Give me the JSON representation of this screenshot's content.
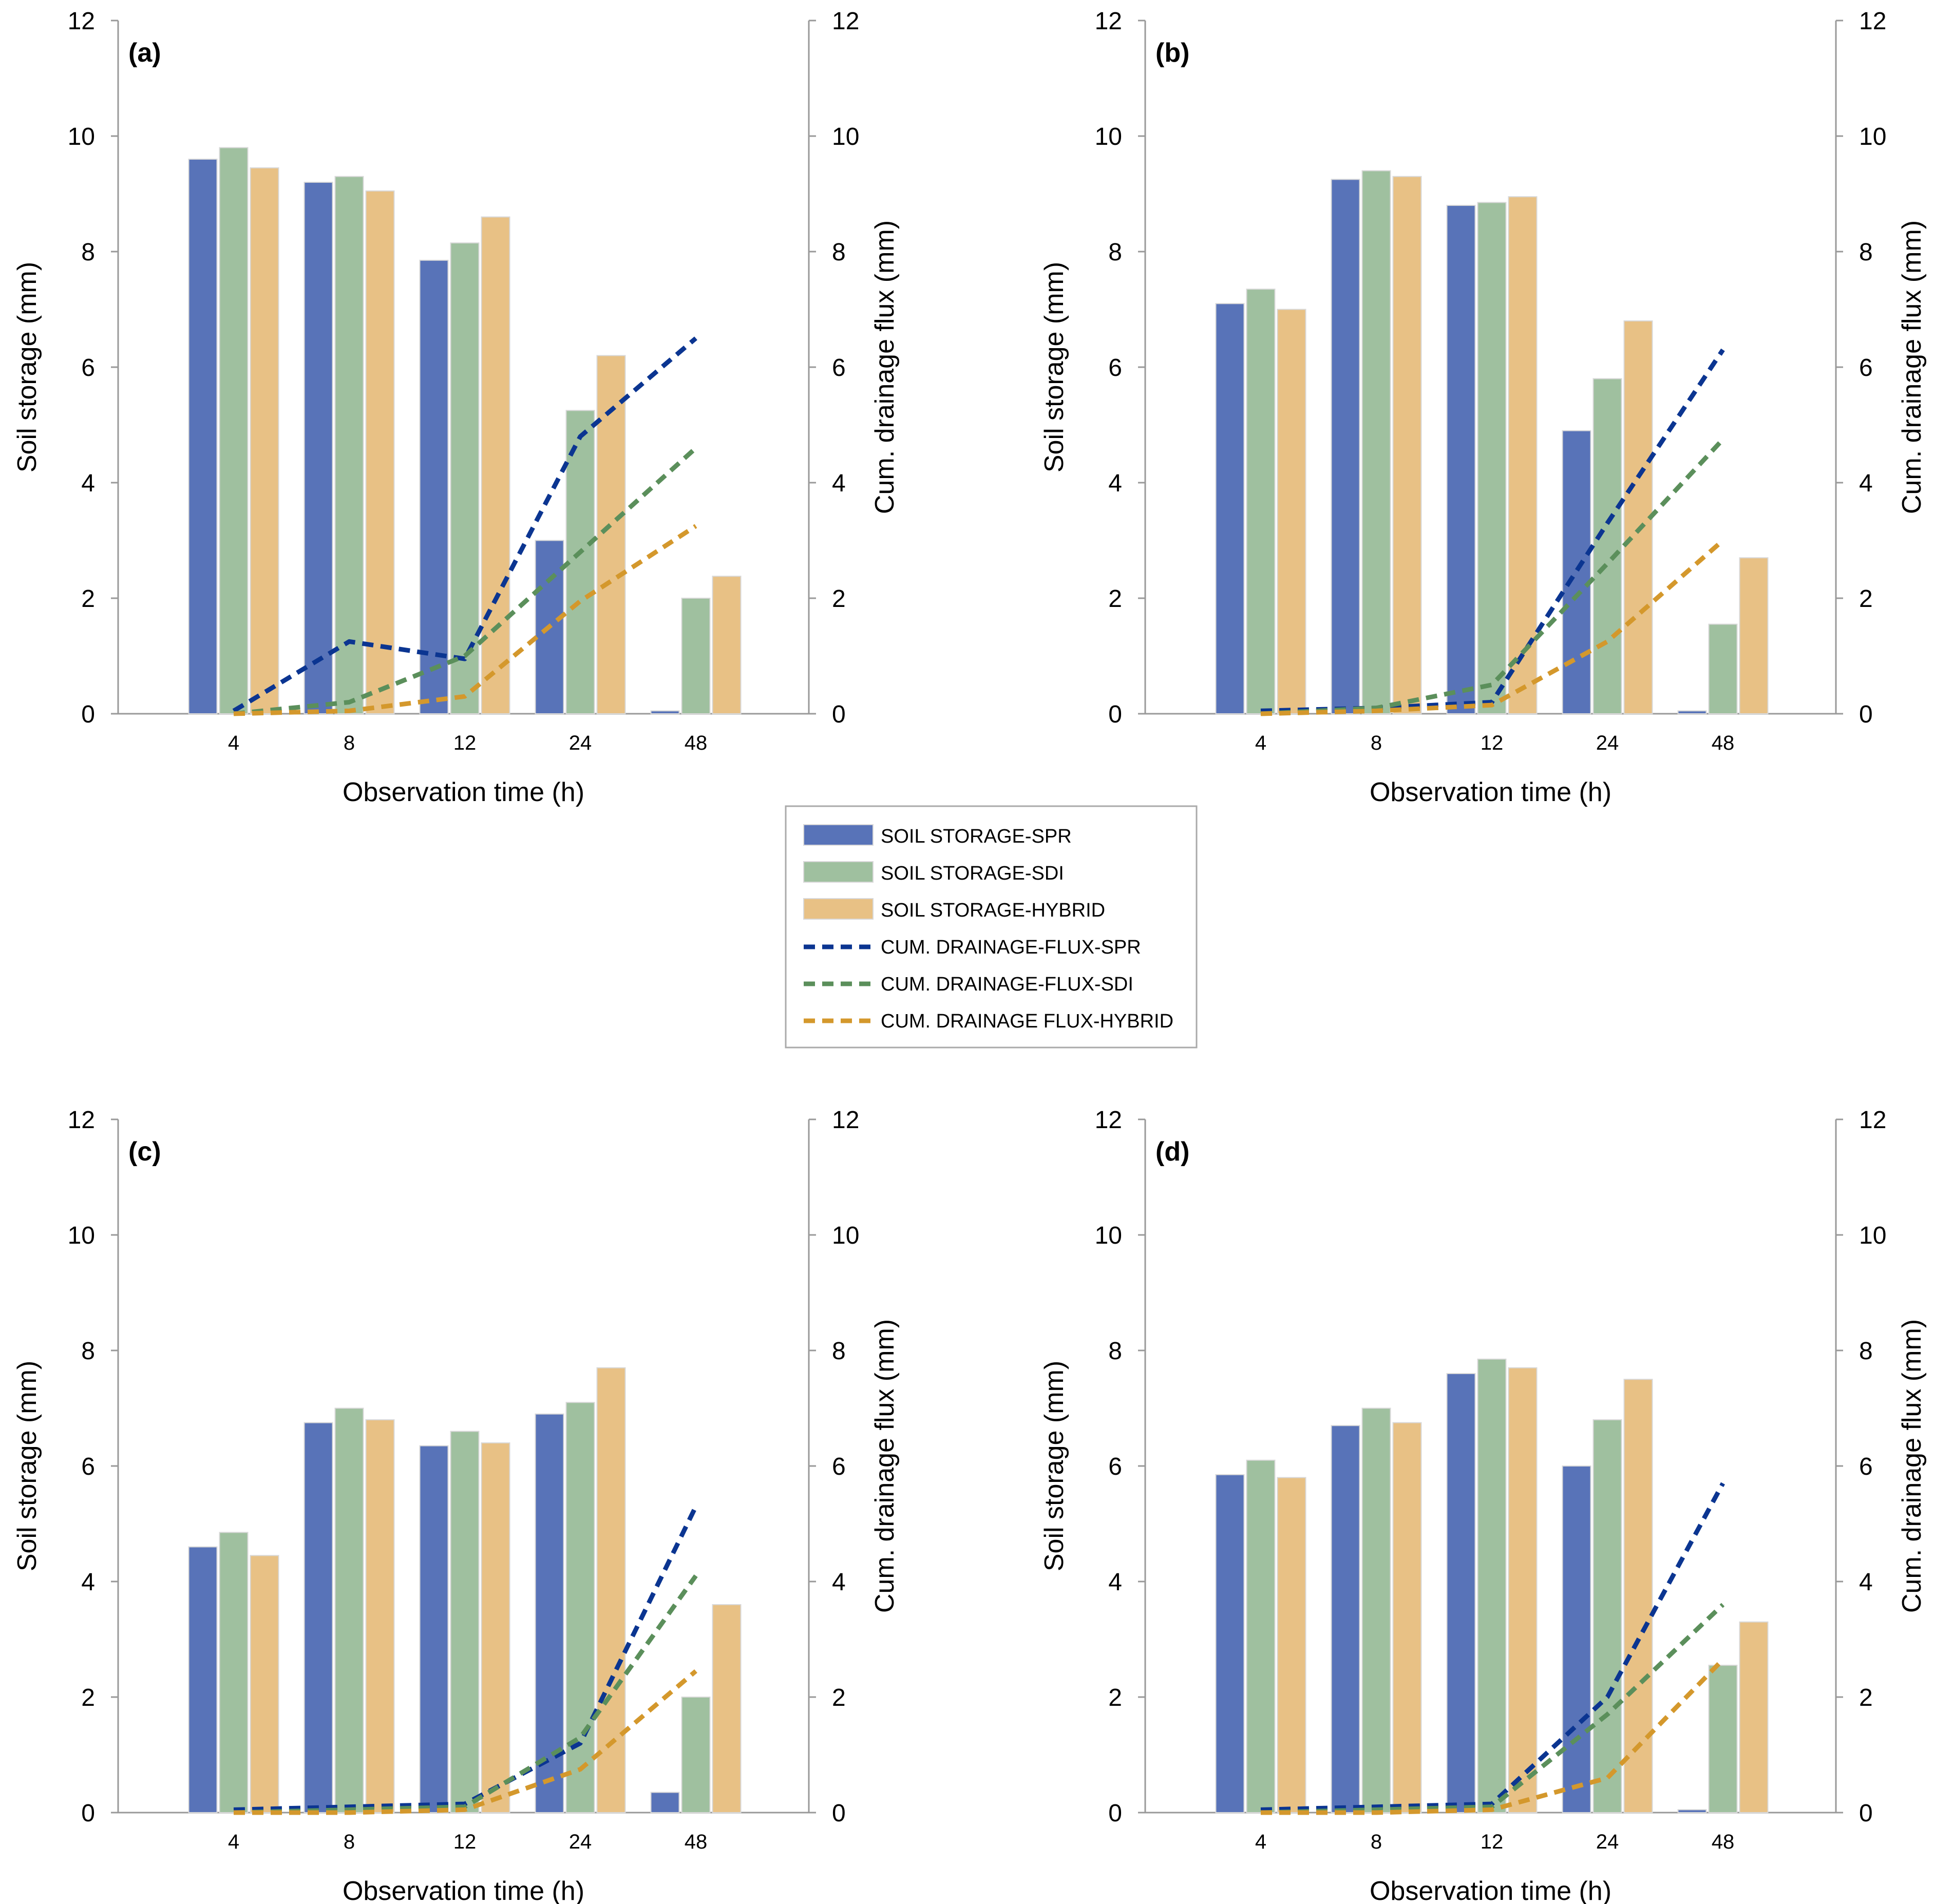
{
  "chart_data": [
    {
      "type": "bar",
      "panel_label": "(a)",
      "categories": [
        "4",
        "8",
        "12",
        "24",
        "48"
      ],
      "xlabel": "Observation time (h)",
      "ylabel": "Soil storage (mm)",
      "y2label": "Cum. drainage flux (mm)",
      "ylim": [
        0,
        12
      ],
      "y2lim": [
        0,
        12
      ],
      "yticks": [
        "0",
        "2",
        "4",
        "6",
        "8",
        "10",
        "12"
      ],
      "series": [
        {
          "name": "SOIL STORAGE-SPR",
          "kind": "bar",
          "values": [
            9.6,
            9.2,
            7.85,
            3.0,
            0.05
          ]
        },
        {
          "name": "SOIL STORAGE-SDI",
          "kind": "bar",
          "values": [
            9.8,
            9.3,
            8.15,
            5.25,
            2.0
          ]
        },
        {
          "name": "SOIL STORAGE-HYBRID",
          "kind": "bar",
          "values": [
            9.45,
            9.05,
            8.6,
            6.2,
            2.38
          ]
        },
        {
          "name": "CUM. DRAINAGE-FLUX-SPR",
          "kind": "line",
          "axis": "right",
          "values": [
            0.05,
            1.25,
            0.95,
            4.8,
            6.5
          ]
        },
        {
          "name": "CUM. DRAINAGE-FLUX-SDI",
          "kind": "line",
          "axis": "right",
          "values": [
            0.0,
            0.2,
            1.0,
            2.8,
            4.6
          ]
        },
        {
          "name": "CUM. DRAINAGE FLUX-HYBRID",
          "kind": "line",
          "axis": "right",
          "values": [
            0.0,
            0.05,
            0.3,
            1.95,
            3.25
          ]
        }
      ]
    },
    {
      "type": "bar",
      "panel_label": "(b)",
      "categories": [
        "4",
        "8",
        "12",
        "24",
        "48"
      ],
      "xlabel": "Observation time (h)",
      "ylabel": "Soil storage (mm)",
      "y2label": "Cum. drainage flux (mm)",
      "ylim": [
        0,
        12
      ],
      "y2lim": [
        0,
        12
      ],
      "yticks": [
        "0",
        "2",
        "4",
        "6",
        "8",
        "10",
        "12"
      ],
      "series": [
        {
          "name": "SOIL STORAGE-SPR",
          "kind": "bar",
          "values": [
            7.1,
            9.25,
            8.8,
            4.9,
            0.05
          ]
        },
        {
          "name": "SOIL STORAGE-SDI",
          "kind": "bar",
          "values": [
            7.35,
            9.4,
            8.85,
            5.8,
            1.55
          ]
        },
        {
          "name": "SOIL STORAGE-HYBRID",
          "kind": "bar",
          "values": [
            7.0,
            9.3,
            8.95,
            6.8,
            2.7
          ]
        },
        {
          "name": "CUM. DRAINAGE-FLUX-SPR",
          "kind": "line",
          "axis": "right",
          "values": [
            0.05,
            0.1,
            0.2,
            3.3,
            6.3
          ]
        },
        {
          "name": "CUM. DRAINAGE-FLUX-SDI",
          "kind": "line",
          "axis": "right",
          "values": [
            0.0,
            0.1,
            0.5,
            2.6,
            4.75
          ]
        },
        {
          "name": "CUM. DRAINAGE FLUX-HYBRID",
          "kind": "line",
          "axis": "right",
          "values": [
            0.0,
            0.05,
            0.15,
            1.25,
            3.0
          ]
        }
      ]
    },
    {
      "type": "bar",
      "panel_label": "(c)",
      "categories": [
        "4",
        "8",
        "12",
        "24",
        "48"
      ],
      "xlabel": "Observation time (h)",
      "ylabel": "Soil storage (mm)",
      "y2label": "Cum. drainage flux (mm)",
      "ylim": [
        0,
        12
      ],
      "y2lim": [
        0,
        12
      ],
      "yticks": [
        "0",
        "2",
        "4",
        "6",
        "8",
        "10",
        "12"
      ],
      "series": [
        {
          "name": "SOIL STORAGE-SPR",
          "kind": "bar",
          "values": [
            4.6,
            6.75,
            6.35,
            6.9,
            0.35
          ]
        },
        {
          "name": "SOIL STORAGE-SDI",
          "kind": "bar",
          "values": [
            4.85,
            7.0,
            6.6,
            7.1,
            2.0
          ]
        },
        {
          "name": "SOIL STORAGE-HYBRID",
          "kind": "bar",
          "values": [
            4.45,
            6.8,
            6.4,
            7.7,
            3.6
          ]
        },
        {
          "name": "CUM. DRAINAGE-FLUX-SPR",
          "kind": "line",
          "axis": "right",
          "values": [
            0.05,
            0.1,
            0.15,
            1.2,
            5.3
          ]
        },
        {
          "name": "CUM. DRAINAGE-FLUX-SDI",
          "kind": "line",
          "axis": "right",
          "values": [
            0.0,
            0.05,
            0.1,
            1.3,
            4.1
          ]
        },
        {
          "name": "CUM. DRAINAGE FLUX-HYBRID",
          "kind": "line",
          "axis": "right",
          "values": [
            0.0,
            0.0,
            0.05,
            0.75,
            2.45
          ]
        }
      ]
    },
    {
      "type": "bar",
      "panel_label": "(d)",
      "categories": [
        "4",
        "8",
        "12",
        "24",
        "48"
      ],
      "xlabel": "Observation time (h)",
      "ylabel": "Soil storage (mm)",
      "y2label": "Cum. drainage flux (mm)",
      "ylim": [
        0,
        12
      ],
      "y2lim": [
        0,
        12
      ],
      "yticks": [
        "0",
        "2",
        "4",
        "6",
        "8",
        "10",
        "12"
      ],
      "series": [
        {
          "name": "SOIL STORAGE-SPR",
          "kind": "bar",
          "values": [
            5.85,
            6.7,
            7.6,
            6.0,
            0.05
          ]
        },
        {
          "name": "SOIL STORAGE-SDI",
          "kind": "bar",
          "values": [
            6.1,
            7.0,
            7.85,
            6.8,
            2.55
          ]
        },
        {
          "name": "SOIL STORAGE-HYBRID",
          "kind": "bar",
          "values": [
            5.8,
            6.75,
            7.7,
            7.5,
            3.3
          ]
        },
        {
          "name": "CUM. DRAINAGE-FLUX-SPR",
          "kind": "line",
          "axis": "right",
          "values": [
            0.05,
            0.1,
            0.15,
            2.0,
            5.7
          ]
        },
        {
          "name": "CUM. DRAINAGE-FLUX-SDI",
          "kind": "line",
          "axis": "right",
          "values": [
            0.0,
            0.05,
            0.1,
            1.7,
            3.6
          ]
        },
        {
          "name": "CUM. DRAINAGE FLUX-HYBRID",
          "kind": "line",
          "axis": "right",
          "values": [
            0.0,
            0.0,
            0.05,
            0.6,
            2.65
          ]
        }
      ]
    }
  ],
  "legend": {
    "entries": [
      {
        "label": "SOIL STORAGE-SPR",
        "kind": "bar",
        "color": "#5873b8"
      },
      {
        "label": "SOIL STORAGE-SDI",
        "kind": "bar",
        "color": "#9fc09f"
      },
      {
        "label": "SOIL STORAGE-HYBRID",
        "kind": "bar",
        "color": "#e8c185"
      },
      {
        "label": "CUM. DRAINAGE-FLUX-SPR",
        "kind": "line",
        "color": "#0b3591"
      },
      {
        "label": "CUM. DRAINAGE-FLUX-SDI",
        "kind": "line",
        "color": "#5b8f5b"
      },
      {
        "label": "CUM. DRAINAGE FLUX-HYBRID",
        "kind": "line",
        "color": "#d4982c"
      }
    ]
  },
  "colors": {
    "bar_spr": "#5873b8",
    "bar_sdi": "#9fc09f",
    "bar_hybrid": "#e8c185",
    "line_spr": "#0b3591",
    "line_sdi": "#5b8f5b",
    "line_hybrid": "#d4982c",
    "axis": "#999999"
  }
}
